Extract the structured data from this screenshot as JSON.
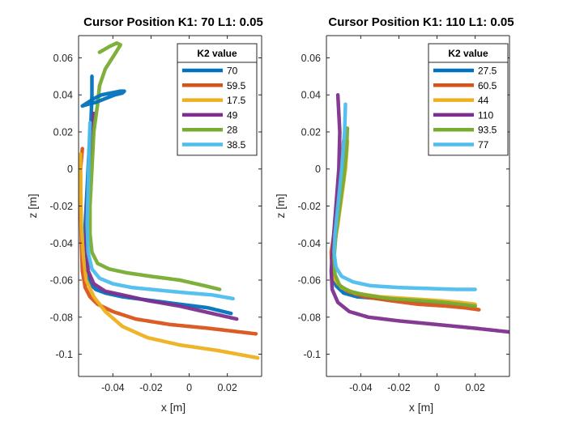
{
  "chart_data": [
    {
      "type": "line",
      "title": "Cursor Position K1: 70 L1: 0.05",
      "xlabel": "x [m]",
      "ylabel": "z [m]",
      "xlim": [
        -0.058,
        0.038
      ],
      "ylim": [
        -0.112,
        0.072
      ],
      "xticks": [
        -0.04,
        -0.02,
        0,
        0.02
      ],
      "xtick_labels": [
        "-0.04",
        "-0.02",
        "0",
        "0.02"
      ],
      "yticks": [
        -0.1,
        -0.08,
        -0.06,
        -0.04,
        -0.02,
        0,
        0.02,
        0.04,
        0.06
      ],
      "ytick_labels": [
        "-0.1",
        "-0.08",
        "-0.06",
        "-0.04",
        "-0.02",
        "0",
        "0.02",
        "0.04",
        "0.06"
      ],
      "grid": false,
      "legend_title": "K2 value",
      "legend_position": "top-right",
      "series": [
        {
          "name": "70",
          "color": "#0072BD",
          "x": [
            -0.051,
            -0.051,
            -0.0515,
            -0.0525,
            -0.0535,
            -0.0545,
            -0.0545,
            -0.054,
            -0.052,
            -0.049,
            -0.044,
            -0.035,
            -0.02,
            -0.005,
            0.01,
            0.022
          ],
          "y": [
            0.05,
            0.04,
            0.025,
            0.01,
            -0.01,
            -0.03,
            -0.045,
            -0.055,
            -0.062,
            -0.065,
            -0.067,
            -0.069,
            -0.071,
            -0.073,
            -0.075,
            -0.078
          ]
        },
        {
          "name": "59.5",
          "color": "#D95319",
          "x": [
            -0.056,
            -0.057,
            -0.057,
            -0.0565,
            -0.056,
            -0.0545,
            -0.052,
            -0.048,
            -0.04,
            -0.028,
            -0.01,
            0.01,
            0.035
          ],
          "y": [
            0.011,
            0.0,
            -0.02,
            -0.04,
            -0.055,
            -0.064,
            -0.069,
            -0.073,
            -0.077,
            -0.081,
            -0.084,
            -0.086,
            -0.089
          ]
        },
        {
          "name": "17.5",
          "color": "#EDB120",
          "x": [
            -0.057,
            -0.057,
            -0.0565,
            -0.0555,
            -0.054,
            -0.05,
            -0.044,
            -0.035,
            -0.022,
            -0.005,
            0.015,
            0.036
          ],
          "y": [
            0.008,
            -0.01,
            -0.03,
            -0.047,
            -0.06,
            -0.069,
            -0.077,
            -0.085,
            -0.091,
            -0.095,
            -0.098,
            -0.102
          ]
        },
        {
          "name": "49",
          "color": "#7E2F8E",
          "x": [
            -0.05,
            -0.051,
            -0.0525,
            -0.0535,
            -0.054,
            -0.053,
            -0.05,
            -0.044,
            -0.035,
            -0.022,
            -0.005,
            0.012,
            0.025
          ],
          "y": [
            0.03,
            0.015,
            0.0,
            -0.02,
            -0.04,
            -0.055,
            -0.062,
            -0.066,
            -0.068,
            -0.071,
            -0.074,
            -0.078,
            -0.081
          ]
        },
        {
          "name": "28",
          "color": "#77AC30",
          "x": [
            -0.047,
            -0.042,
            -0.038,
            -0.036,
            -0.039,
            -0.044,
            -0.047,
            -0.048,
            -0.05,
            -0.051,
            -0.052,
            -0.052,
            -0.051,
            -0.048,
            -0.042,
            -0.033,
            -0.02,
            -0.005,
            0.008,
            0.016
          ],
          "y": [
            0.063,
            0.066,
            0.068,
            0.067,
            0.062,
            0.054,
            0.045,
            0.035,
            0.02,
            0.0,
            -0.02,
            -0.035,
            -0.045,
            -0.051,
            -0.054,
            -0.056,
            -0.058,
            -0.06,
            -0.063,
            -0.065
          ]
        },
        {
          "name": "38.5",
          "color": "#4DBEEE",
          "x": [
            -0.052,
            -0.0525,
            -0.053,
            -0.0535,
            -0.053,
            -0.051,
            -0.047,
            -0.04,
            -0.03,
            -0.02,
            -0.01,
            0.0,
            0.012,
            0.023
          ],
          "y": [
            0.025,
            0.01,
            -0.01,
            -0.03,
            -0.045,
            -0.054,
            -0.059,
            -0.062,
            -0.064,
            -0.065,
            -0.066,
            -0.067,
            -0.068,
            -0.07
          ]
        },
        {
          "name": "",
          "color": "#0072BD",
          "x": [
            -0.056,
            -0.053,
            -0.049,
            -0.044,
            -0.039,
            -0.035,
            -0.034,
            -0.036,
            -0.041,
            -0.046,
            -0.05,
            -0.053,
            -0.056
          ],
          "y": [
            0.034,
            0.035,
            0.036,
            0.038,
            0.04,
            0.041,
            0.042,
            0.042,
            0.041,
            0.04,
            0.038,
            0.036,
            0.034
          ]
        }
      ]
    },
    {
      "type": "line",
      "title": "Cursor Position K1: 110 L1: 0.05",
      "xlabel": "x [m]",
      "ylabel": "z [m]",
      "xlim": [
        -0.058,
        0.038
      ],
      "ylim": [
        -0.112,
        0.072
      ],
      "xticks": [
        -0.04,
        -0.02,
        0,
        0.02
      ],
      "xtick_labels": [
        "-0.04",
        "-0.02",
        "0",
        "0.02"
      ],
      "yticks": [
        -0.1,
        -0.08,
        -0.06,
        -0.04,
        -0.02,
        0,
        0.02,
        0.04,
        0.06
      ],
      "ytick_labels": [
        "-0.1",
        "-0.08",
        "-0.06",
        "-0.04",
        "-0.02",
        "0",
        "0.02",
        "0.04",
        "0.06"
      ],
      "grid": false,
      "legend_title": "K2 value",
      "legend_position": "top-right",
      "series": [
        {
          "name": "27.5",
          "color": "#0072BD",
          "x": [
            -0.048,
            -0.049,
            -0.051,
            -0.053,
            -0.0545,
            -0.055,
            -0.053,
            -0.049,
            -0.042,
            -0.03,
            -0.015,
            0.0,
            0.01,
            0.02
          ],
          "y": [
            0.01,
            -0.005,
            -0.02,
            -0.035,
            -0.048,
            -0.057,
            -0.063,
            -0.067,
            -0.069,
            -0.07,
            -0.071,
            -0.072,
            -0.073,
            -0.074
          ]
        },
        {
          "name": "60.5",
          "color": "#D95319",
          "x": [
            -0.049,
            -0.0505,
            -0.0525,
            -0.054,
            -0.0555,
            -0.055,
            -0.052,
            -0.047,
            -0.038,
            -0.025,
            -0.01,
            0.005,
            0.015,
            0.022
          ],
          "y": [
            0.015,
            0.0,
            -0.02,
            -0.035,
            -0.045,
            -0.055,
            -0.062,
            -0.066,
            -0.069,
            -0.071,
            -0.073,
            -0.074,
            -0.075,
            -0.076
          ]
        },
        {
          "name": "44",
          "color": "#EDB120",
          "x": [
            -0.047,
            -0.048,
            -0.05,
            -0.052,
            -0.054,
            -0.055,
            -0.054,
            -0.05,
            -0.043,
            -0.03,
            -0.015,
            0.0,
            0.012,
            0.02
          ],
          "y": [
            0.015,
            0.0,
            -0.015,
            -0.03,
            -0.042,
            -0.052,
            -0.059,
            -0.064,
            -0.067,
            -0.069,
            -0.07,
            -0.071,
            -0.072,
            -0.073
          ]
        },
        {
          "name": "110",
          "color": "#7E2F8E",
          "x": [
            -0.052,
            -0.051,
            -0.0515,
            -0.053,
            -0.0545,
            -0.0555,
            -0.055,
            -0.052,
            -0.046,
            -0.036,
            -0.02,
            0.0,
            0.02,
            0.038
          ],
          "y": [
            0.04,
            0.02,
            0.0,
            -0.02,
            -0.04,
            -0.055,
            -0.065,
            -0.072,
            -0.077,
            -0.08,
            -0.082,
            -0.084,
            -0.086,
            -0.088
          ]
        },
        {
          "name": "93.5",
          "color": "#77AC30",
          "x": [
            -0.047,
            -0.0475,
            -0.049,
            -0.051,
            -0.053,
            -0.054,
            -0.0535,
            -0.051,
            -0.046,
            -0.038,
            -0.025,
            -0.01,
            0.003,
            0.012,
            0.02
          ],
          "y": [
            0.022,
            0.01,
            -0.005,
            -0.02,
            -0.035,
            -0.048,
            -0.057,
            -0.063,
            -0.066,
            -0.068,
            -0.07,
            -0.071,
            -0.072,
            -0.073,
            -0.074
          ]
        },
        {
          "name": "77",
          "color": "#4DBEEE",
          "x": [
            -0.048,
            -0.0485,
            -0.05,
            -0.052,
            -0.0535,
            -0.054,
            -0.053,
            -0.05,
            -0.044,
            -0.035,
            -0.02,
            -0.005,
            0.01,
            0.02
          ],
          "y": [
            0.035,
            0.02,
            0.0,
            -0.02,
            -0.035,
            -0.045,
            -0.053,
            -0.058,
            -0.061,
            -0.063,
            -0.064,
            -0.0645,
            -0.065,
            -0.065
          ]
        }
      ]
    }
  ]
}
